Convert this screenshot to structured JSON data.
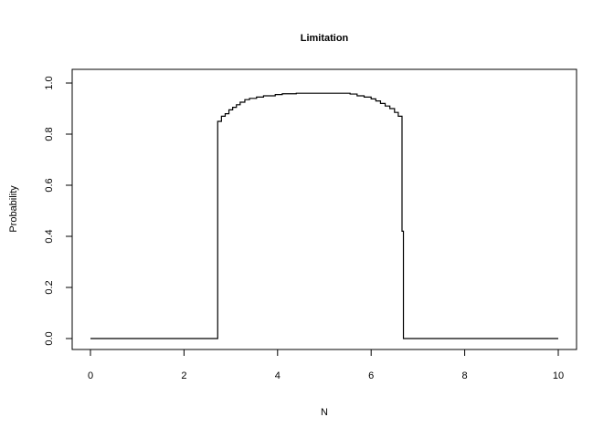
{
  "chart_data": {
    "type": "line",
    "style": "step",
    "title": "Limitation",
    "xlabel": "N",
    "ylabel": "Probability",
    "xlim": [
      0,
      10
    ],
    "ylim": [
      0,
      1
    ],
    "grid": false,
    "line_color": "#000000",
    "x_ticks": [
      "0",
      "2",
      "4",
      "6",
      "8",
      "10"
    ],
    "y_ticks": [
      "0.0",
      "0.2",
      "0.4",
      "0.6",
      "0.8",
      "1.0"
    ],
    "series": [
      {
        "x": [
          0,
          2.72,
          2.72,
          2.8,
          2.88,
          2.96,
          3.04,
          3.12,
          3.2,
          3.3,
          3.4,
          3.55,
          3.7,
          3.95,
          4.1,
          4.4,
          4.7,
          5.0,
          5.3,
          5.55,
          5.7,
          5.85,
          6.0,
          6.1,
          6.2,
          6.3,
          6.4,
          6.5,
          6.58,
          6.66,
          6.66,
          6.69,
          6.69,
          10
        ],
        "y": [
          0,
          0,
          0.85,
          0.87,
          0.88,
          0.895,
          0.905,
          0.915,
          0.925,
          0.935,
          0.94,
          0.945,
          0.95,
          0.955,
          0.958,
          0.96,
          0.96,
          0.96,
          0.96,
          0.957,
          0.95,
          0.945,
          0.938,
          0.93,
          0.92,
          0.91,
          0.9,
          0.885,
          0.87,
          0.845,
          0.42,
          0.42,
          0,
          0
        ]
      }
    ]
  }
}
